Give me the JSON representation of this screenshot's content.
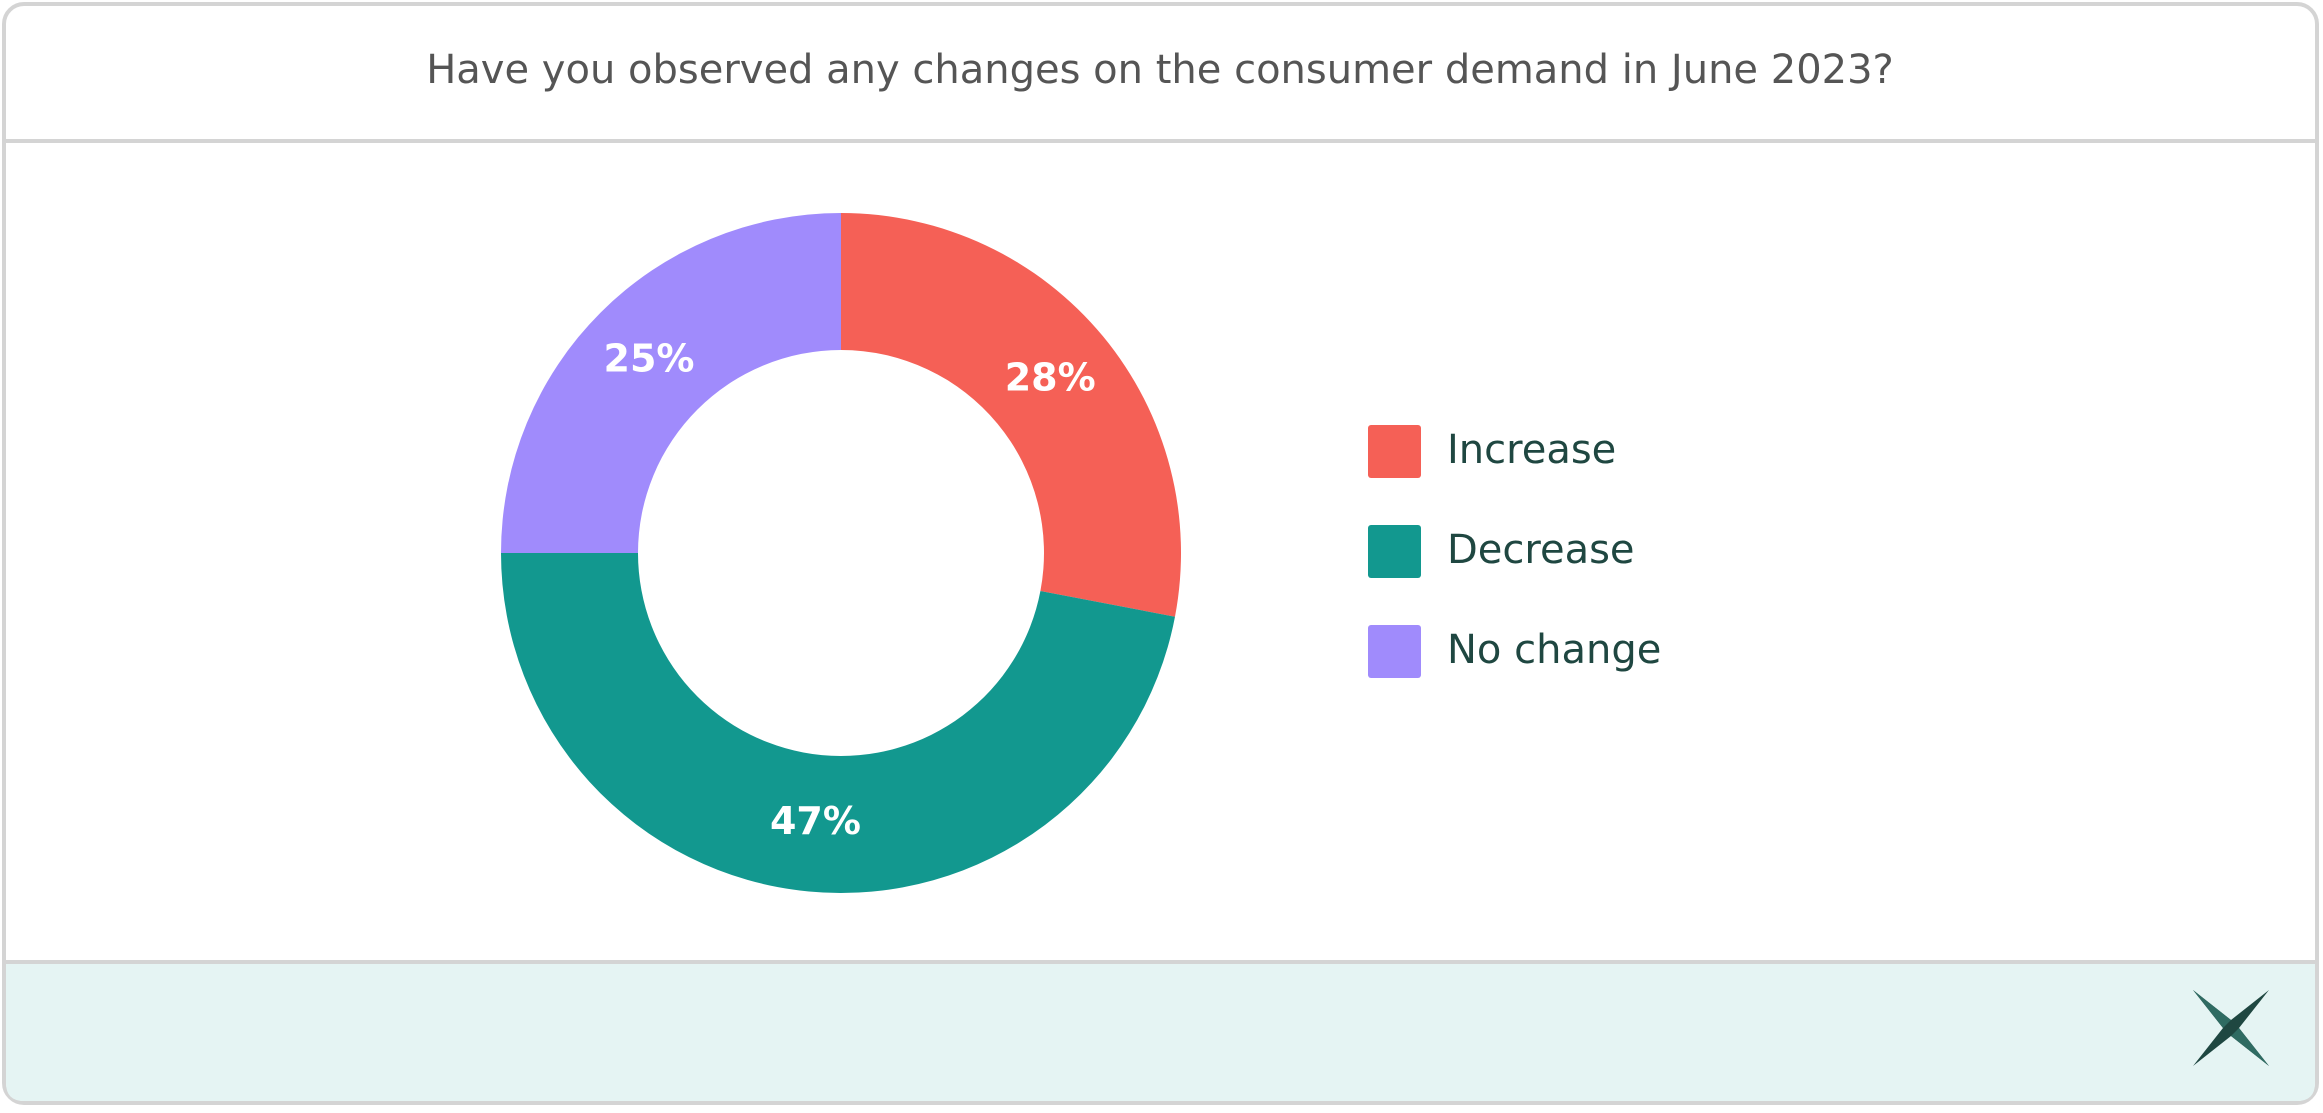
{
  "chart_data": {
    "type": "donut",
    "title": "Have you observed any changes on the consumer demand in June 2023?",
    "categories": [
      "Increase",
      "Decrease",
      "No change"
    ],
    "values": [
      28,
      47,
      25
    ],
    "value_labels": [
      "28%",
      "47%",
      "25%"
    ],
    "colors": [
      "#f56056",
      "#12988f",
      "#a08bfc"
    ],
    "legend": "right"
  }
}
